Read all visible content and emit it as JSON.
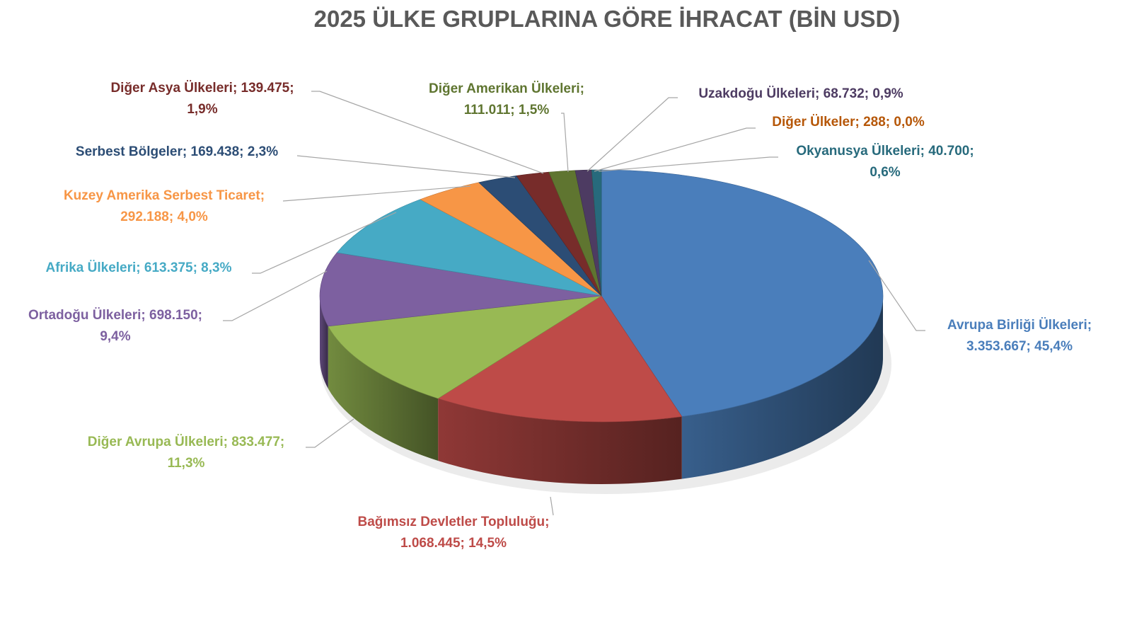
{
  "chart_data": {
    "type": "pie",
    "style": "3d",
    "title": "2025 ÜLKE GRUPLARINA GÖRE İHRACAT (BİN USD)",
    "start_angle": "12 o'clock",
    "direction": "clockwise",
    "slices": [
      {
        "name": "Avrupa Birliği Ülkeleri",
        "value": 3353667,
        "percent": 45.4,
        "color": "#4a7ebb",
        "label_color": "#4a7ebb",
        "label_lines": [
          "Avrupa Birliği Ülkeleri;",
          "3.353.667; 45,4%"
        ]
      },
      {
        "name": "Bağımsız Devletler Topluluğu",
        "value": 1068445,
        "percent": 14.5,
        "color": "#be4b48",
        "label_color": "#be4b48",
        "label_lines": [
          "Bağımsız Devletler Topluluğu;",
          "1.068.445; 14,5%"
        ]
      },
      {
        "name": "Diğer Avrupa Ülkeleri",
        "value": 833477,
        "percent": 11.3,
        "color": "#98b954",
        "label_color": "#98b954",
        "label_lines": [
          "Diğer Avrupa Ülkeleri; 833.477;",
          "11,3%"
        ]
      },
      {
        "name": "Ortadoğu Ülkeleri",
        "value": 698150,
        "percent": 9.4,
        "color": "#7d60a0",
        "label_color": "#7d60a0",
        "label_lines": [
          "Ortadoğu Ülkeleri; 698.150;",
          "9,4%"
        ]
      },
      {
        "name": "Afrika Ülkeleri",
        "value": 613375,
        "percent": 8.3,
        "color": "#46aac5",
        "label_color": "#46aac5",
        "label_lines": [
          "Afrika Ülkeleri; 613.375; 8,3%"
        ]
      },
      {
        "name": "Kuzey Amerika Serbest Ticaret",
        "value": 292188,
        "percent": 4.0,
        "color": "#f79646",
        "label_color": "#f79646",
        "label_lines": [
          "Kuzey Amerika Serbest Ticaret;",
          "292.188; 4,0%"
        ]
      },
      {
        "name": "Serbest Bölgeler",
        "value": 169438,
        "percent": 2.3,
        "color": "#2c4d75",
        "label_color": "#2c4d75",
        "label_lines": [
          "Serbest Bölgeler; 169.438; 2,3%"
        ]
      },
      {
        "name": "Diğer Asya Ülkeleri",
        "value": 139475,
        "percent": 1.9,
        "color": "#772c2a",
        "label_color": "#772c2a",
        "label_lines": [
          "Diğer Asya Ülkeleri; 139.475;",
          "1,9%"
        ]
      },
      {
        "name": "Diğer Amerikan Ülkeleri",
        "value": 111011,
        "percent": 1.5,
        "color": "#5f7530",
        "label_color": "#5f7530",
        "label_lines": [
          "Diğer Amerikan Ülkeleri;",
          "111.011; 1,5%"
        ]
      },
      {
        "name": "Uzakdoğu Ülkeleri",
        "value": 68732,
        "percent": 0.9,
        "color": "#4d3b62",
        "label_color": "#4d3b62",
        "label_lines": [
          "Uzakdoğu Ülkeleri; 68.732; 0,9%"
        ]
      },
      {
        "name": "Diğer Ülkeler",
        "value": 288,
        "percent": 0.0,
        "color": "#b65708",
        "label_color": "#b65708",
        "label_lines": [
          "Diğer Ülkeler; 288; 0,0%"
        ]
      },
      {
        "name": "Okyanusya Ülkeleri",
        "value": 40700,
        "percent": 0.6,
        "color": "#276a7c",
        "label_color": "#276a7c",
        "label_lines": [
          "Okyanusya Ülkeleri; 40.700;",
          "0,6%"
        ]
      }
    ]
  }
}
